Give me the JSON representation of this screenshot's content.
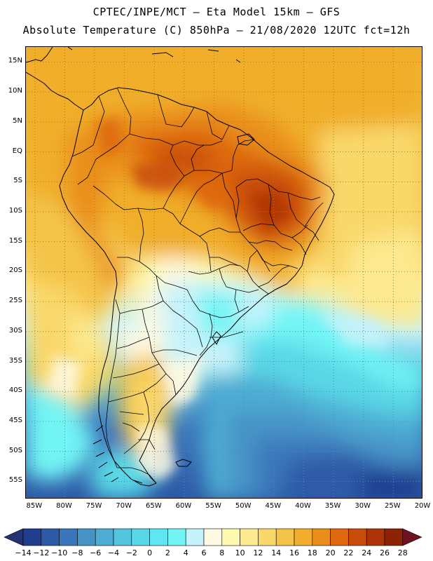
{
  "header": {
    "title_line1": "CPTEC/INPE/MCT –  Eta Model 15km – GFS",
    "title_line2": "Absolute Temperature (C) 850hPa – 21/08/2020 12UTC fct=12h"
  },
  "map": {
    "lat_labels": [
      "15N",
      "10N",
      "5N",
      "EQ",
      "5S",
      "10S",
      "15S",
      "20S",
      "25S",
      "30S",
      "35S",
      "40S",
      "45S",
      "50S",
      "55S"
    ],
    "lat_values": [
      15,
      10,
      5,
      0,
      -5,
      -10,
      -15,
      -20,
      -25,
      -30,
      -35,
      -40,
      -45,
      -50,
      -55
    ],
    "lon_labels": [
      "85W",
      "80W",
      "75W",
      "70W",
      "65W",
      "60W",
      "55W",
      "50W",
      "45W",
      "40W",
      "35W",
      "30W",
      "25W",
      "20W"
    ],
    "lon_values": [
      -85,
      -80,
      -75,
      -70,
      -65,
      -60,
      -55,
      -50,
      -45,
      -40,
      -35,
      -30,
      -25,
      -20
    ],
    "lat_range": [
      -58,
      17.5
    ],
    "lon_range": [
      -86.5,
      -20
    ],
    "grid_color": "#7f7f7f",
    "land_color": "#000000"
  },
  "colorbar": {
    "labels": [
      "-14",
      "-12",
      "-10",
      "-8",
      "-6",
      "-4",
      "-2",
      "0",
      "2",
      "4",
      "6",
      "8",
      "10",
      "12",
      "14",
      "16",
      "18",
      "20",
      "22",
      "24",
      "26",
      "28"
    ],
    "colors": [
      "#1f3e8e",
      "#2d5aa6",
      "#3a76bb",
      "#4693c6",
      "#4eacd3",
      "#55c4de",
      "#5ad7e6",
      "#60e6f0",
      "#72f4f5",
      "#c6f3fb",
      "#fef9e2",
      "#fefbb0",
      "#fde98f",
      "#f9d86b",
      "#f4c44a",
      "#f0ae2c",
      "#e98e1a",
      "#dd6810",
      "#c84d0a",
      "#ad3406",
      "#8e2204"
    ],
    "under_color": "#233373",
    "over_color": "#6e1321"
  }
}
